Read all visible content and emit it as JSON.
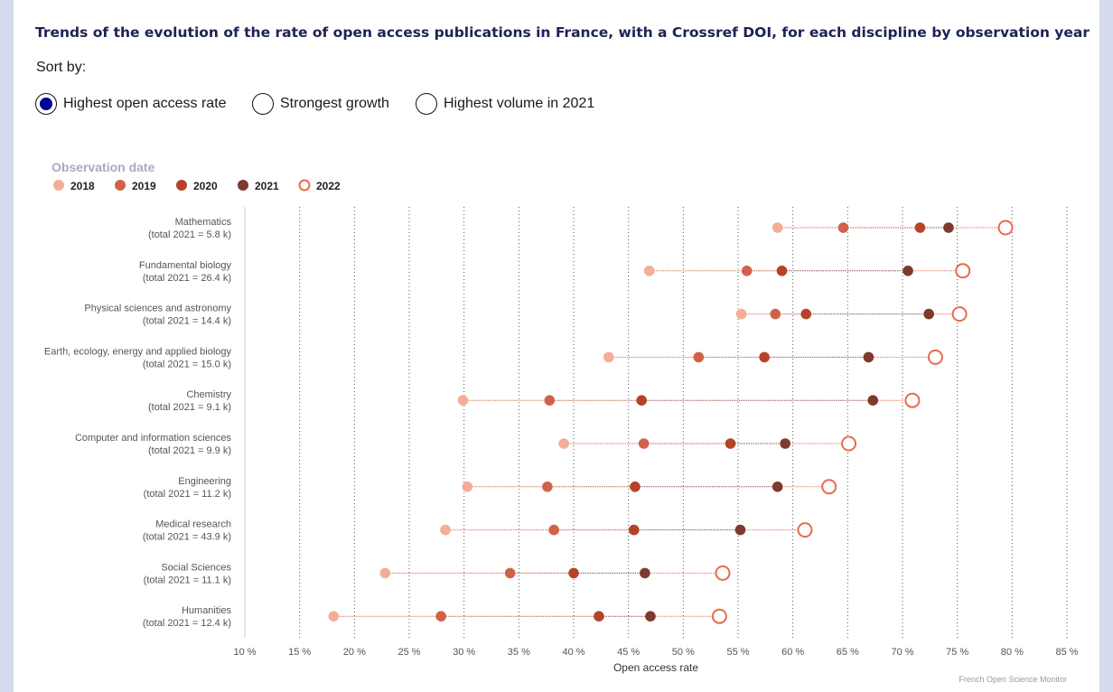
{
  "title": "Trends of the evolution of the rate of open access publications in France, with a Crossref DOI, for each discipline by observation year",
  "sort": {
    "label": "Sort by:",
    "selected": 0,
    "options": [
      "Highest open access rate",
      "Strongest growth",
      "Highest volume in 2021"
    ]
  },
  "colors": {
    "2018": "#f5ad98",
    "2019": "#d0624a",
    "2020": "#b5432a",
    "2021": "#7f3a2f",
    "2022": "#e96a4e"
  },
  "chart_data": {
    "type": "scatter",
    "subtype": "dumbbell",
    "legend_title": "Observation date",
    "legend_placement": "top-left",
    "series": [
      {
        "name": "2018",
        "marker": "filled"
      },
      {
        "name": "2019",
        "marker": "filled"
      },
      {
        "name": "2020",
        "marker": "filled"
      },
      {
        "name": "2021",
        "marker": "filled"
      },
      {
        "name": "2022",
        "marker": "hollow"
      }
    ],
    "categories": [
      {
        "label": "Mathematics",
        "sublabel": "(total 2021 = 5.8 k)",
        "values": [
          58.6,
          64.6,
          71.6,
          74.2,
          79.4
        ]
      },
      {
        "label": "Fundamental biology",
        "sublabel": "(total 2021 = 26.4 k)",
        "values": [
          46.9,
          55.8,
          59.0,
          70.5,
          75.5
        ]
      },
      {
        "label": "Physical sciences and astronomy",
        "sublabel": "(total 2021 = 14.4 k)",
        "values": [
          55.3,
          58.4,
          61.2,
          72.4,
          75.2
        ]
      },
      {
        "label": "Earth, ecology, energy and applied biology",
        "sublabel": "(total 2021 = 15.0 k)",
        "values": [
          43.2,
          51.4,
          57.4,
          66.9,
          73.0
        ]
      },
      {
        "label": "Chemistry",
        "sublabel": "(total 2021 = 9.1 k)",
        "values": [
          29.9,
          37.8,
          46.2,
          67.3,
          70.9
        ]
      },
      {
        "label": "Computer and information sciences",
        "sublabel": "(total 2021 = 9.9 k)",
        "values": [
          39.1,
          46.4,
          54.3,
          59.3,
          65.1
        ]
      },
      {
        "label": "Engineering",
        "sublabel": "(total 2021 = 11.2 k)",
        "values": [
          30.3,
          37.6,
          45.6,
          58.6,
          63.3
        ]
      },
      {
        "label": "Medical research",
        "sublabel": "(total 2021 = 43.9 k)",
        "values": [
          28.3,
          38.2,
          45.5,
          55.2,
          61.1
        ]
      },
      {
        "label": "Social Sciences",
        "sublabel": "(total 2021 = 11.1 k)",
        "values": [
          22.8,
          34.2,
          40.0,
          46.5,
          53.6
        ]
      },
      {
        "label": "Humanities",
        "sublabel": "(total 2021 = 12.4 k)",
        "values": [
          18.1,
          27.9,
          42.3,
          47.0,
          53.3
        ]
      }
    ],
    "xlabel": "Open access rate",
    "xlim": [
      10,
      85
    ],
    "xticks": [
      "10 %",
      "15 %",
      "20 %",
      "25 %",
      "30 %",
      "35 %",
      "40 %",
      "45 %",
      "50 %",
      "55 %",
      "60 %",
      "65 %",
      "70 %",
      "75 %",
      "80 %",
      "85 %"
    ],
    "grid": "vertical-dotted",
    "credit": "French Open Science Monitor"
  }
}
